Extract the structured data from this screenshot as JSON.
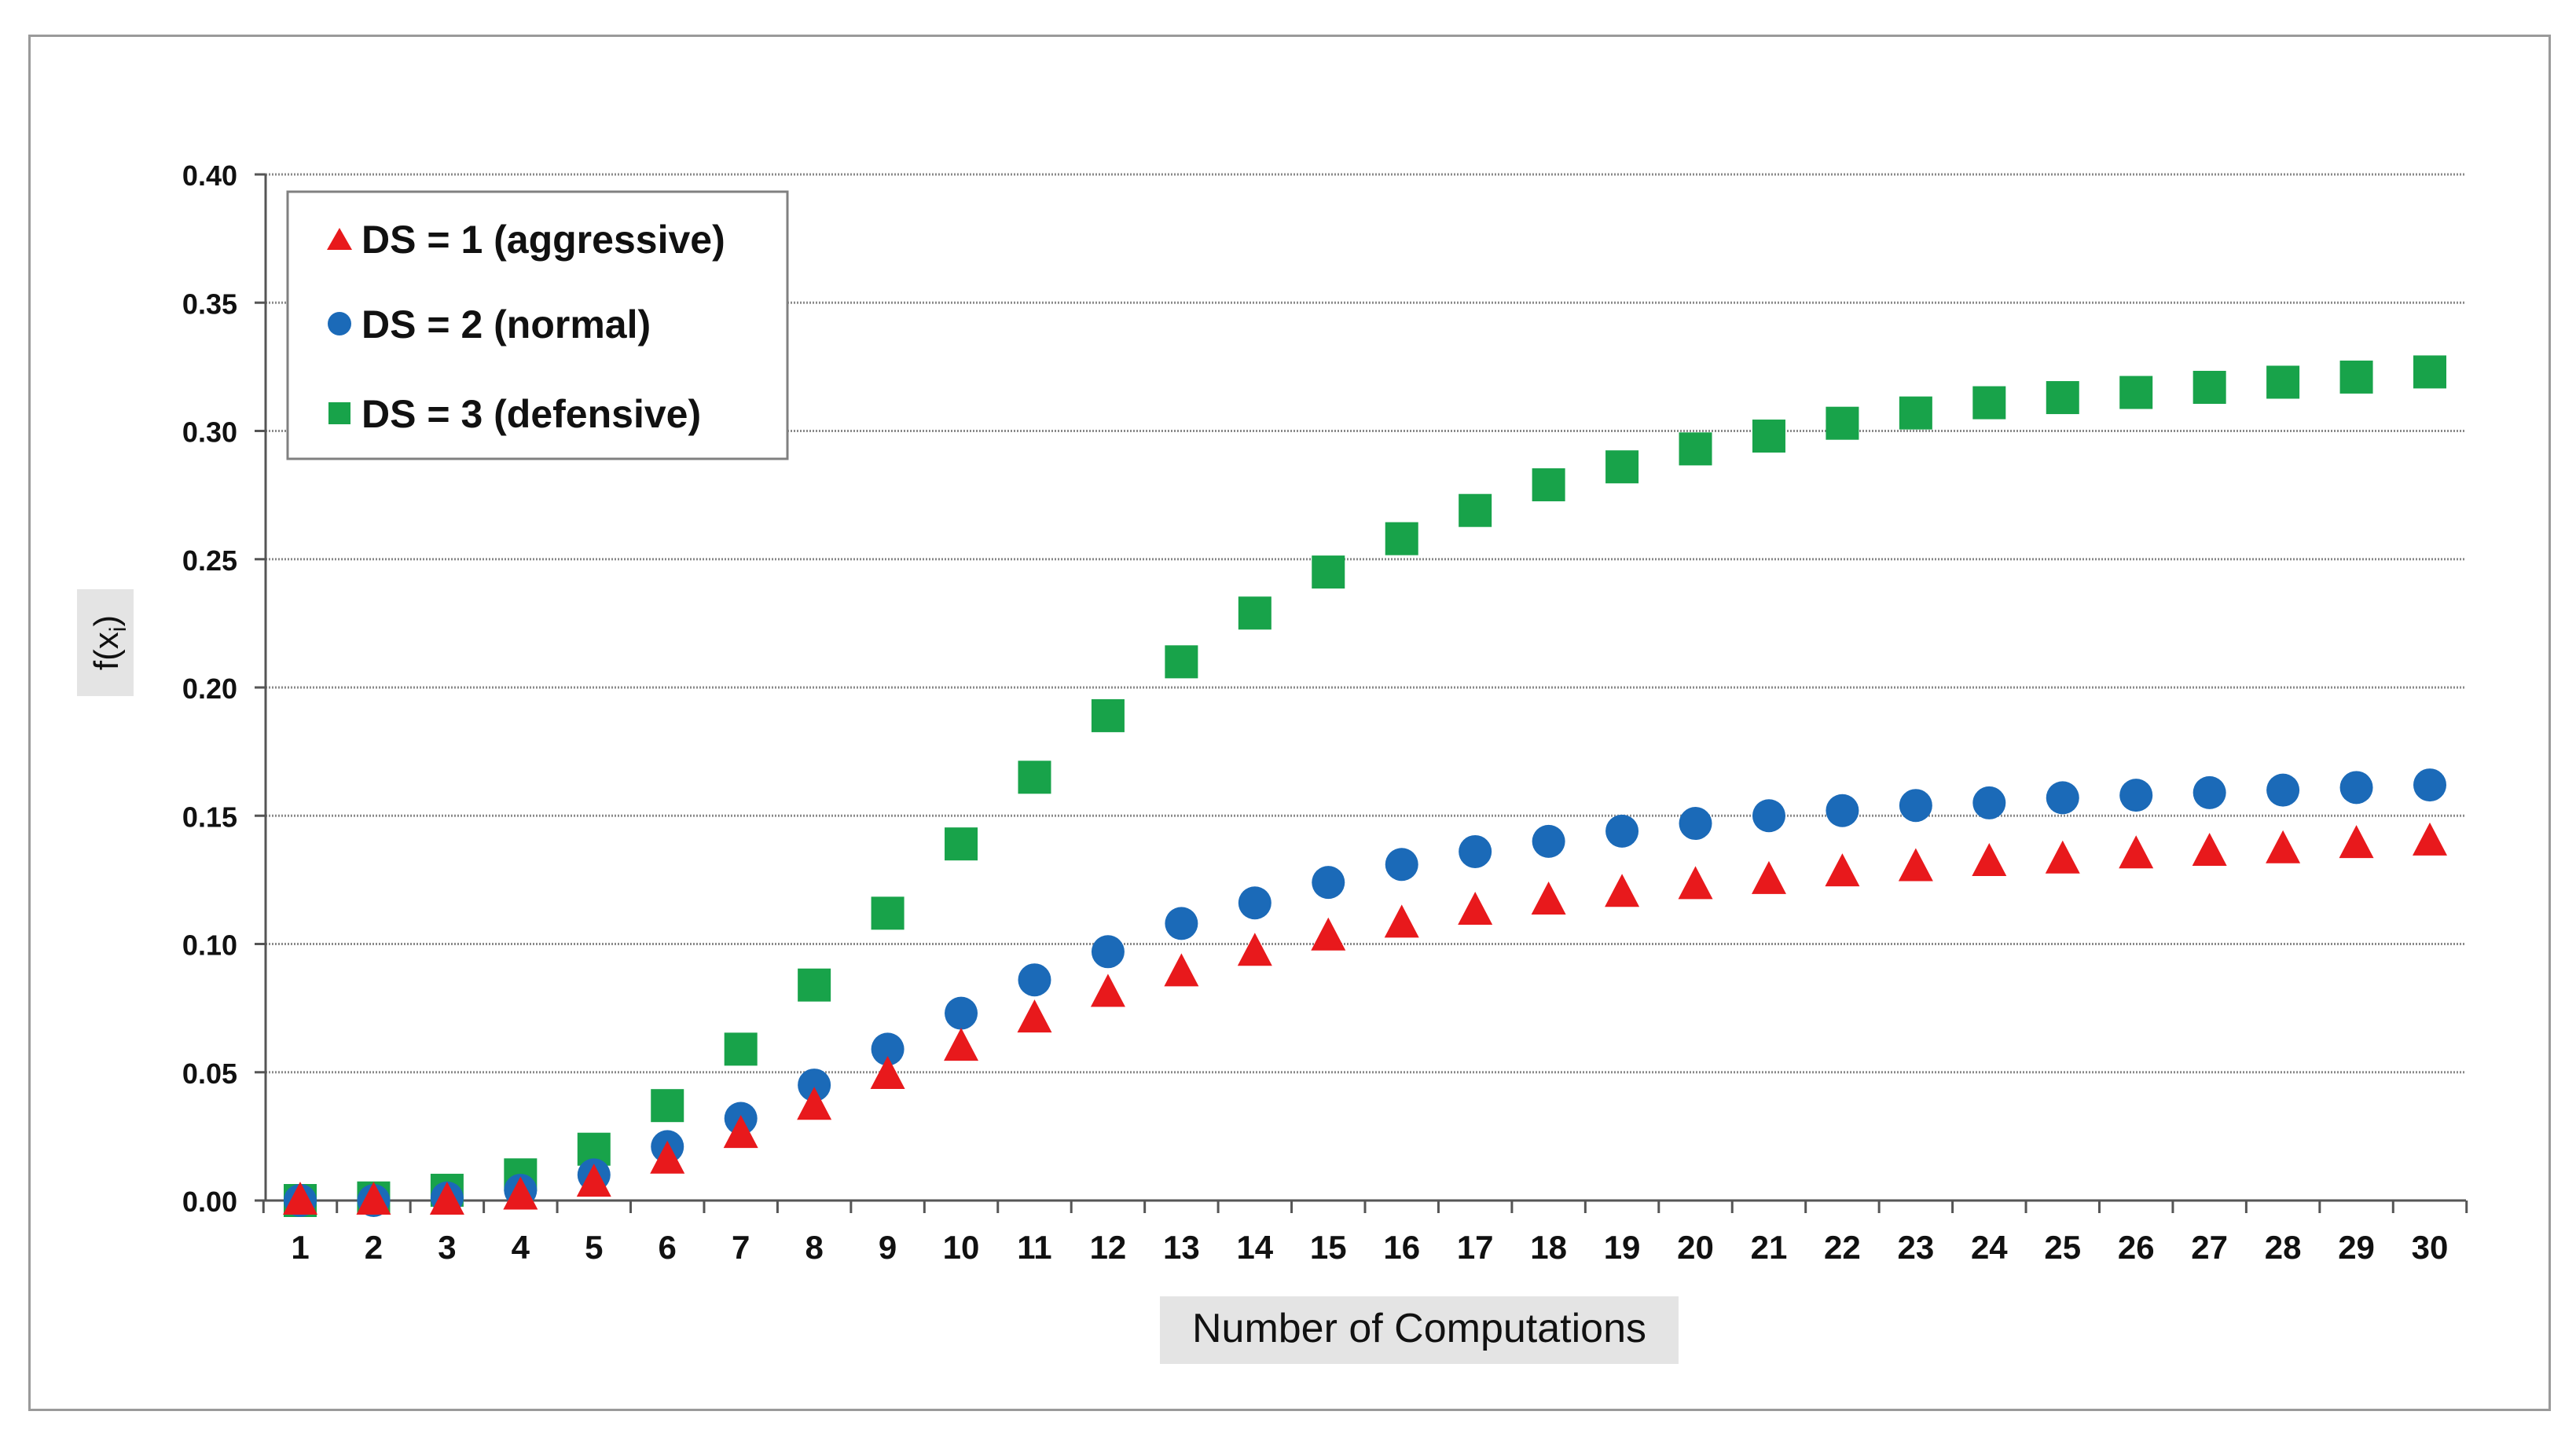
{
  "chart_data": {
    "type": "scatter",
    "title": "",
    "xlabel": "Number of Computations",
    "ylabel": "f(x",
    "ylabel_sub": "i",
    "ylabel_end": ")",
    "x": [
      1,
      2,
      3,
      4,
      5,
      6,
      7,
      8,
      9,
      10,
      11,
      12,
      13,
      14,
      15,
      16,
      17,
      18,
      19,
      20,
      21,
      22,
      23,
      24,
      25,
      26,
      27,
      28,
      29,
      30
    ],
    "xlim": [
      1,
      30
    ],
    "ylim": [
      0,
      0.4
    ],
    "yticks": [
      "0.00",
      "0.05",
      "0.10",
      "0.15",
      "0.20",
      "0.25",
      "0.30",
      "0.35",
      "0.40"
    ],
    "grid": true,
    "legend_position": "top-left",
    "series": [
      {
        "name": "DS = 1 (aggressive)",
        "marker": "triangle",
        "color": "#e8191c",
        "values": [
          0.0,
          0.0,
          0.0,
          0.002,
          0.007,
          0.016,
          0.026,
          0.037,
          0.049,
          0.06,
          0.071,
          0.081,
          0.089,
          0.097,
          0.103,
          0.108,
          0.113,
          0.117,
          0.12,
          0.123,
          0.125,
          0.128,
          0.13,
          0.132,
          0.133,
          0.135,
          0.136,
          0.137,
          0.139,
          0.14
        ]
      },
      {
        "name": "DS = 2 (normal)",
        "marker": "circle",
        "color": "#1b6ab8",
        "values": [
          0.0,
          0.0,
          0.001,
          0.004,
          0.01,
          0.021,
          0.032,
          0.045,
          0.059,
          0.073,
          0.086,
          0.097,
          0.108,
          0.116,
          0.124,
          0.131,
          0.136,
          0.14,
          0.144,
          0.147,
          0.15,
          0.152,
          0.154,
          0.155,
          0.157,
          0.158,
          0.159,
          0.16,
          0.161,
          0.162
        ]
      },
      {
        "name": "DS = 3 (defensive)",
        "marker": "square",
        "color": "#18a34a",
        "values": [
          0.0,
          0.001,
          0.004,
          0.01,
          0.02,
          0.037,
          0.059,
          0.084,
          0.112,
          0.139,
          0.165,
          0.189,
          0.21,
          0.229,
          0.245,
          0.258,
          0.269,
          0.279,
          0.286,
          0.293,
          0.298,
          0.303,
          0.307,
          0.311,
          0.313,
          0.315,
          0.317,
          0.319,
          0.321,
          0.323
        ]
      }
    ]
  }
}
